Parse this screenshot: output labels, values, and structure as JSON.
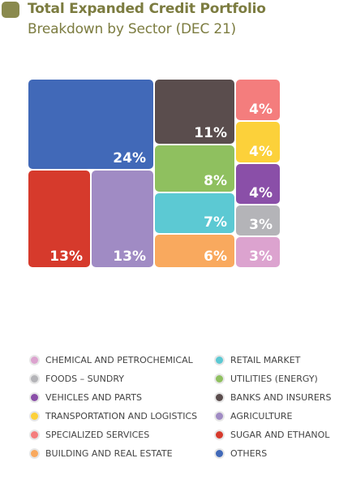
{
  "header": {
    "title": "Total Expanded Credit Portfolio",
    "subtitle": "Breakdown by Sector (DEC 21)"
  },
  "chart_data": {
    "type": "treemap",
    "title": "Total Expanded Credit Portfolio",
    "subtitle": "Breakdown by Sector (DEC 21)",
    "series": [
      {
        "name": "OTHERS",
        "value": 24,
        "label": "24%",
        "color": "#4169b8"
      },
      {
        "name": "SUGAR AND ETHANOL",
        "value": 13,
        "label": "13%",
        "color": "#d63a2c"
      },
      {
        "name": "AGRICULTURE",
        "value": 13,
        "label": "13%",
        "color": "#a08bc4"
      },
      {
        "name": "BANKS AND INSURERS",
        "value": 11,
        "label": "11%",
        "color": "#5a4d4d"
      },
      {
        "name": "UTILITIES (ENERGY)",
        "value": 8,
        "label": "8%",
        "color": "#8fc05f"
      },
      {
        "name": "RETAIL MARKET",
        "value": 7,
        "label": "7%",
        "color": "#5cc9d3"
      },
      {
        "name": "BUILDING AND REAL ESTATE",
        "value": 6,
        "label": "6%",
        "color": "#f9a95e"
      },
      {
        "name": "SPECIALIZED SERVICES",
        "value": 4,
        "label": "4%",
        "color": "#f47d7d"
      },
      {
        "name": "TRANSPORTATION AND LOGISTICS",
        "value": 4,
        "label": "4%",
        "color": "#fcd13a"
      },
      {
        "name": "VEHICLES AND PARTS",
        "value": 4,
        "label": "4%",
        "color": "#8a4fa8"
      },
      {
        "name": "FOODS - SUNDRY",
        "value": 3,
        "label": "3%",
        "color": "#b4b4b8"
      },
      {
        "name": "CHEMICAL AND PETROCHEMICAL",
        "value": 3,
        "label": "3%",
        "color": "#dca3cf"
      }
    ],
    "legend": {
      "placement": "bottom",
      "columns": [
        [
          "CHEMICAL AND PETROCHEMICAL",
          "FOODS – SUNDRY",
          "VEHICLES AND PARTS",
          "TRANSPORTATION AND LOGISTICS",
          "SPECIALIZED SERVICES",
          "BUILDING AND REAL ESTATE"
        ],
        [
          "RETAIL MARKET",
          "UTILITIES (ENERGY)",
          "BANKS AND INSURERS",
          "AGRICULTURE",
          "SUGAR AND ETHANOL",
          "OTHERS"
        ]
      ],
      "colors": [
        [
          "#dca3cf",
          "#b4b4b8",
          "#8a4fa8",
          "#fcd13a",
          "#f47d7d",
          "#f9a95e"
        ],
        [
          "#5cc9d3",
          "#8fc05f",
          "#5a4d4d",
          "#a08bc4",
          "#d63a2c",
          "#4169b8"
        ]
      ]
    }
  }
}
